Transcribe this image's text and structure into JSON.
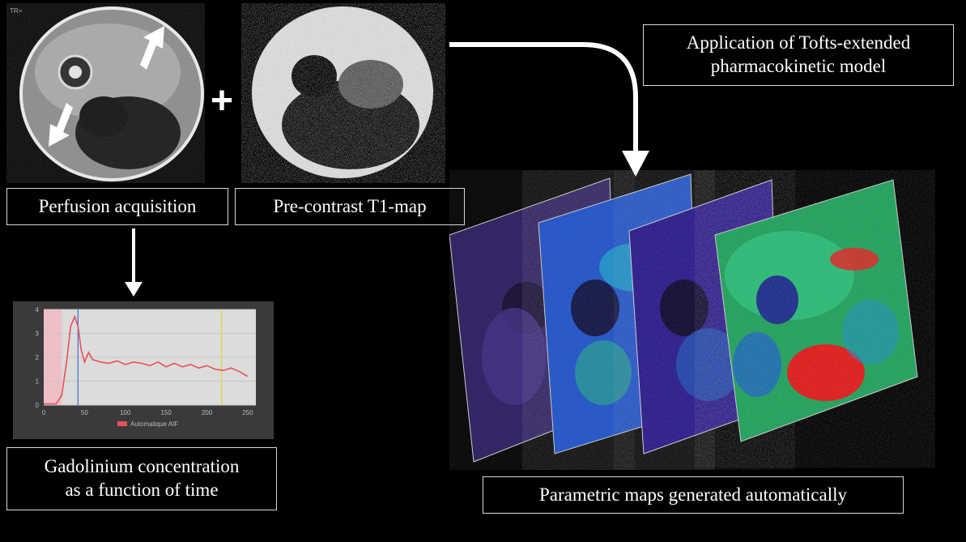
{
  "labels": {
    "perfusion": "Perfusion acquisition",
    "t1map": "Pre-contrast T1-map",
    "tofts_line1": "Application of Tofts-extended",
    "tofts_line2": "pharmacokinetic model",
    "gado_line1": "Gadolinium concentration",
    "gado_line2": "as a function of time",
    "parametric": "Parametric maps generated automatically",
    "plus": "+"
  },
  "chart_data": {
    "type": "line",
    "title": "",
    "xlabel": "",
    "ylabel": "",
    "xlim": [
      0,
      260
    ],
    "ylim": [
      0,
      4
    ],
    "xticks": [
      "0",
      "50",
      "100",
      "150",
      "200",
      "250"
    ],
    "yticks": [
      "0",
      "1",
      "2",
      "3",
      "4"
    ],
    "series": [
      {
        "name": "Automatique AIF",
        "x": [
          0,
          15,
          22,
          28,
          33,
          38,
          42,
          46,
          50,
          55,
          60,
          70,
          80,
          90,
          100,
          110,
          120,
          130,
          140,
          150,
          160,
          170,
          180,
          190,
          200,
          210,
          220,
          230,
          240,
          250
        ],
        "values": [
          0.05,
          0.05,
          0.4,
          1.8,
          3.3,
          3.7,
          3.3,
          2.3,
          1.8,
          2.2,
          1.9,
          1.8,
          1.75,
          1.85,
          1.7,
          1.8,
          1.75,
          1.65,
          1.8,
          1.6,
          1.75,
          1.6,
          1.7,
          1.55,
          1.65,
          1.5,
          1.45,
          1.55,
          1.4,
          1.2
        ]
      }
    ],
    "markers": [
      {
        "x": 42,
        "color": "#3a6fd8"
      },
      {
        "x": 218,
        "color": "#e6d23c"
      }
    ],
    "legend": "bottom-center",
    "colors": {
      "series": "#e8505b",
      "bg": "#dcdcdc",
      "frame": "#3a3a3a"
    }
  }
}
